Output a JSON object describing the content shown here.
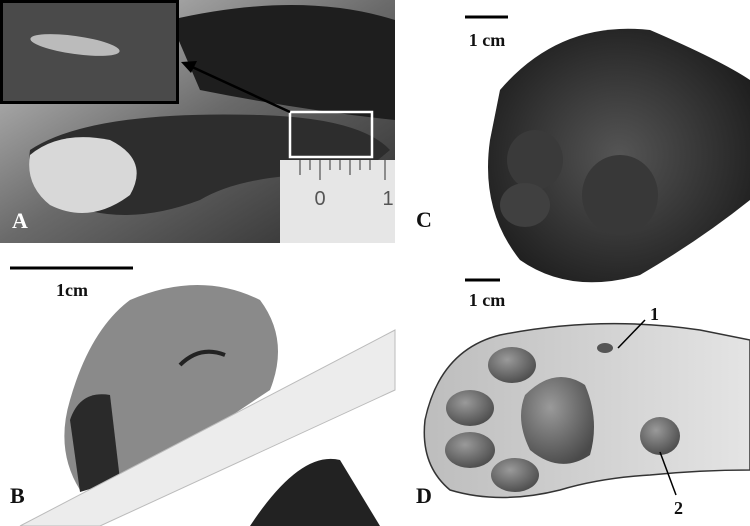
{
  "panels": [
    {
      "label": "A",
      "ruler_labels": [
        "0",
        "1"
      ]
    },
    {
      "label": "B",
      "scale_bar": "1cm"
    },
    {
      "label": "C",
      "scale_bar": "1 cm"
    },
    {
      "label": "D",
      "scale_bar": "1 cm",
      "callouts": [
        "1",
        "2"
      ]
    }
  ]
}
